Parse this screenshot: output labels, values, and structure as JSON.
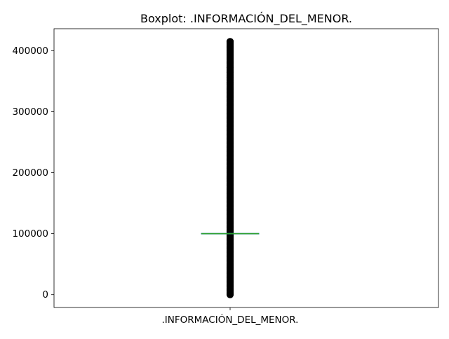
{
  "chart_data": {
    "type": "boxplot",
    "title": "Boxplot: .INFORMACIÓN_DEL_MENOR.",
    "categories": [
      ".INFORMACIÓN_DEL_MENOR."
    ],
    "ylim": [
      -21000,
      436000
    ],
    "yticks": [
      0,
      100000,
      200000,
      300000,
      400000
    ],
    "ytick_labels": [
      "0",
      "100000",
      "200000",
      "300000",
      "400000"
    ],
    "grid": false,
    "box": {
      "q1": 99500,
      "median": 100000,
      "q3": 100500,
      "whisker_low": 99000,
      "whisker_high": 101000
    },
    "outliers_range": [
      0,
      415000
    ],
    "colors": {
      "box": "#1f77b4",
      "median": "#2ca02c",
      "outlier_edge": "#000000",
      "axes": "#000000"
    }
  }
}
